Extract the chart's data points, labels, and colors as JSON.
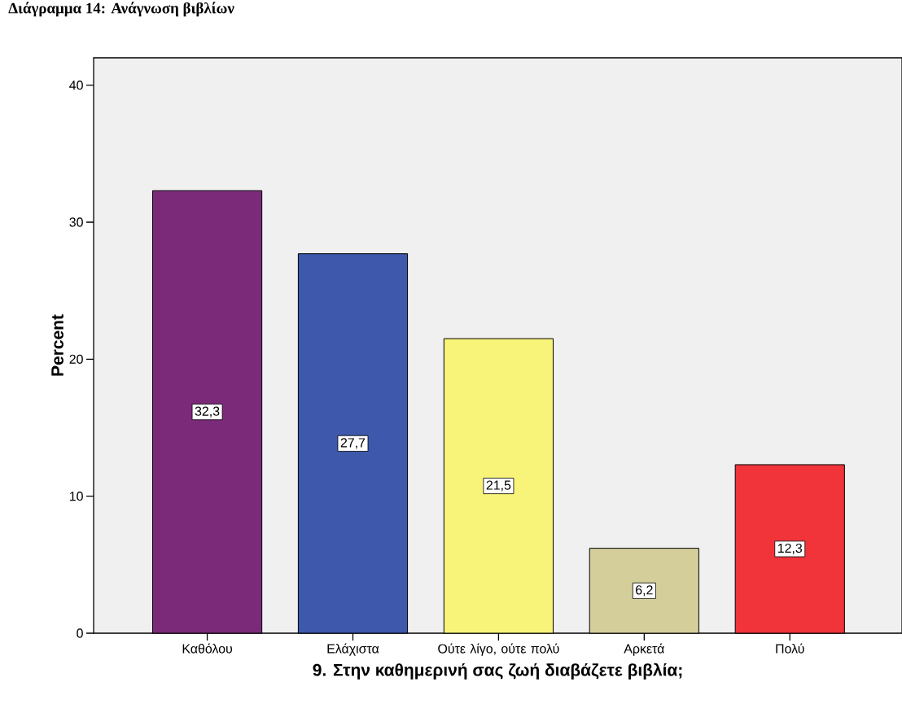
{
  "chart_data": {
    "type": "bar",
    "title": "Διάγραμμα 14: Ανάγνωση βιβλίων",
    "xlabel": "9. Στην καθημερινή σας ζωή διαβάζετε βιβλία;",
    "ylabel": "Percent",
    "categories": [
      "Καθόλου",
      "Ελάχιστα",
      "Ούτε λίγο, ούτε πολύ",
      "Αρκετά",
      "Πολύ"
    ],
    "values": [
      32.3,
      27.7,
      21.5,
      6.2,
      12.3
    ],
    "value_labels": [
      "32,3",
      "27,7",
      "21,5",
      "6,2",
      "12,3"
    ],
    "colors": [
      "#7b2a7a",
      "#3e58ab",
      "#f8f47a",
      "#d4cf9a",
      "#f0343a"
    ],
    "ylim": [
      0,
      42
    ],
    "yticks": [
      0,
      10,
      20,
      30,
      40
    ]
  }
}
